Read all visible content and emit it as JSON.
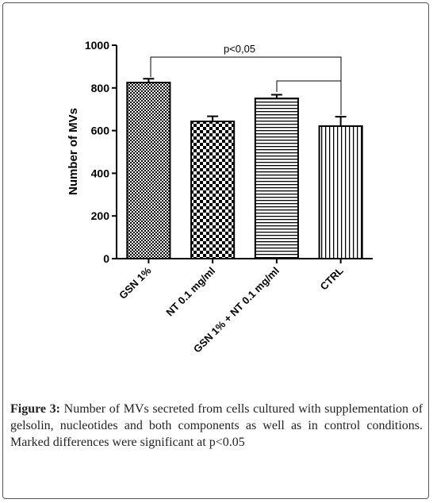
{
  "chart_data": {
    "type": "bar",
    "y_label": "Number of MVs",
    "categories": [
      "GSN 1%",
      "NT 0.1 mg/ml",
      "GSN 1% + NT 0.1 mg/ml",
      "CTRL"
    ],
    "values": [
      825,
      643,
      751,
      621
    ],
    "errors": [
      18,
      24,
      17,
      44
    ],
    "color": "#000000",
    "ylim": [
      0,
      1000
    ],
    "yticks": [
      0,
      200,
      400,
      600,
      800,
      1000
    ],
    "annotation": "p<0,05"
  },
  "caption": {
    "label": "Figure 3:",
    "text": "Number of MVs secreted from cells cultured with supplementation of gelsolin, nucleotides and both components as well as in control conditions. Marked differences were significant at p<0.05"
  }
}
